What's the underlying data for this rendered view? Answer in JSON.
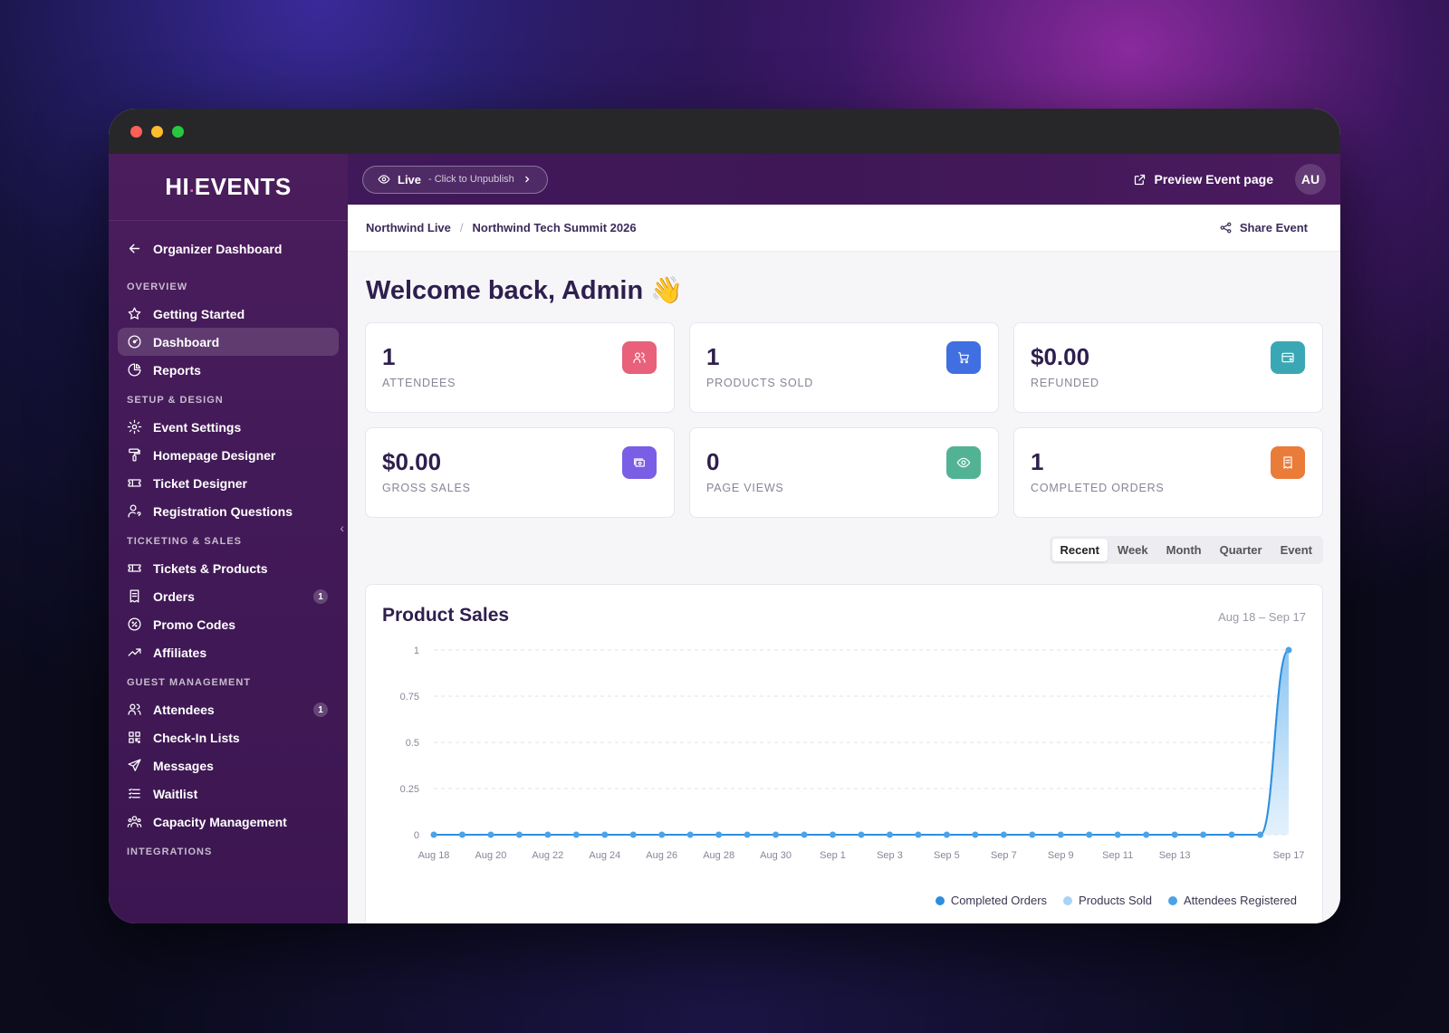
{
  "app": {
    "logo_main": "HI",
    "logo_dot": ".",
    "logo_rest": "EVENTS"
  },
  "sidebar": {
    "back_label": "Organizer Dashboard",
    "sections": [
      {
        "title": "OVERVIEW",
        "items": [
          {
            "label": "Getting Started",
            "icon": "star-icon"
          },
          {
            "label": "Dashboard",
            "icon": "gauge-icon",
            "active": true
          },
          {
            "label": "Reports",
            "icon": "pie-chart-icon"
          }
        ]
      },
      {
        "title": "SETUP & DESIGN",
        "items": [
          {
            "label": "Event Settings",
            "icon": "gear-icon"
          },
          {
            "label": "Homepage Designer",
            "icon": "paint-roller-icon"
          },
          {
            "label": "Ticket Designer",
            "icon": "ticket-icon"
          },
          {
            "label": "Registration Questions",
            "icon": "user-question-icon"
          }
        ]
      },
      {
        "title": "TICKETING & SALES",
        "items": [
          {
            "label": "Tickets & Products",
            "icon": "ticket-icon"
          },
          {
            "label": "Orders",
            "icon": "receipt-icon",
            "badge": "1"
          },
          {
            "label": "Promo Codes",
            "icon": "discount-icon"
          },
          {
            "label": "Affiliates",
            "icon": "trend-up-icon"
          }
        ]
      },
      {
        "title": "GUEST MANAGEMENT",
        "items": [
          {
            "label": "Attendees",
            "icon": "users-icon",
            "badge": "1"
          },
          {
            "label": "Check-In Lists",
            "icon": "qr-code-icon"
          },
          {
            "label": "Messages",
            "icon": "send-icon"
          },
          {
            "label": "Waitlist",
            "icon": "list-icon"
          },
          {
            "label": "Capacity Management",
            "icon": "users-group-icon"
          }
        ]
      },
      {
        "title": "INTEGRATIONS",
        "items": []
      }
    ]
  },
  "topbar": {
    "live_label": "Live",
    "live_sub": "- Click to Unpublish",
    "preview_label": "Preview Event page",
    "avatar_initials": "AU"
  },
  "breadcrumb": {
    "organizer": "Northwind Live",
    "separator": "/",
    "event": "Northwind Tech Summit 2026",
    "share_label": "Share Event"
  },
  "welcome": "Welcome back, Admin 👋",
  "stats": [
    {
      "value": "1",
      "label": "ATTENDEES",
      "icon": "users-icon",
      "color": "#e8607a"
    },
    {
      "value": "1",
      "label": "PRODUCTS SOLD",
      "icon": "cart-icon",
      "color": "#3f6fe0"
    },
    {
      "value": "$0.00",
      "label": "REFUNDED",
      "icon": "card-refund-icon",
      "color": "#3aa8b4"
    },
    {
      "value": "$0.00",
      "label": "GROSS SALES",
      "icon": "cash-icon",
      "color": "#7b5ee6"
    },
    {
      "value": "0",
      "label": "PAGE VIEWS",
      "icon": "eye-icon",
      "color": "#52b394"
    },
    {
      "value": "1",
      "label": "COMPLETED ORDERS",
      "icon": "receipt-icon",
      "color": "#ea7c3a"
    }
  ],
  "range_tabs": [
    {
      "label": "Recent",
      "active": true
    },
    {
      "label": "Week"
    },
    {
      "label": "Month"
    },
    {
      "label": "Quarter"
    },
    {
      "label": "Event"
    }
  ],
  "chart_data": {
    "type": "area",
    "title": "Product Sales",
    "subtitle": "Aug 18 – Sep 17",
    "xlabel": "",
    "ylabel": "",
    "ylim": [
      0,
      1
    ],
    "y_ticks": [
      "0",
      "0.25",
      "0.5",
      "0.75",
      "1"
    ],
    "x_tick_labels": [
      "Aug 18",
      "Aug 20",
      "Aug 22",
      "Aug 24",
      "Aug 26",
      "Aug 28",
      "Aug 30",
      "Sep 1",
      "Sep 3",
      "Sep 5",
      "Sep 7",
      "Sep 9",
      "Sep 11",
      "Sep 13",
      "Sep 17"
    ],
    "x": [
      "Aug 18",
      "Aug 19",
      "Aug 20",
      "Aug 21",
      "Aug 22",
      "Aug 23",
      "Aug 24",
      "Aug 25",
      "Aug 26",
      "Aug 27",
      "Aug 28",
      "Aug 29",
      "Aug 30",
      "Aug 31",
      "Sep 1",
      "Sep 2",
      "Sep 3",
      "Sep 4",
      "Sep 5",
      "Sep 6",
      "Sep 7",
      "Sep 8",
      "Sep 9",
      "Sep 10",
      "Sep 11",
      "Sep 12",
      "Sep 13",
      "Sep 14",
      "Sep 15",
      "Sep 16",
      "Sep 17"
    ],
    "series": [
      {
        "name": "Completed Orders",
        "color": "#2d8ee0",
        "values": [
          0,
          0,
          0,
          0,
          0,
          0,
          0,
          0,
          0,
          0,
          0,
          0,
          0,
          0,
          0,
          0,
          0,
          0,
          0,
          0,
          0,
          0,
          0,
          0,
          0,
          0,
          0,
          0,
          0,
          0,
          1
        ]
      },
      {
        "name": "Products Sold",
        "color": "#a9d3f5",
        "values": [
          0,
          0,
          0,
          0,
          0,
          0,
          0,
          0,
          0,
          0,
          0,
          0,
          0,
          0,
          0,
          0,
          0,
          0,
          0,
          0,
          0,
          0,
          0,
          0,
          0,
          0,
          0,
          0,
          0,
          0,
          1
        ]
      },
      {
        "name": "Attendees Registered",
        "color": "#4aa3e8",
        "values": [
          0,
          0,
          0,
          0,
          0,
          0,
          0,
          0,
          0,
          0,
          0,
          0,
          0,
          0,
          0,
          0,
          0,
          0,
          0,
          0,
          0,
          0,
          0,
          0,
          0,
          0,
          0,
          0,
          0,
          0,
          1
        ]
      }
    ],
    "grid": true,
    "legend_position": "bottom-right"
  }
}
